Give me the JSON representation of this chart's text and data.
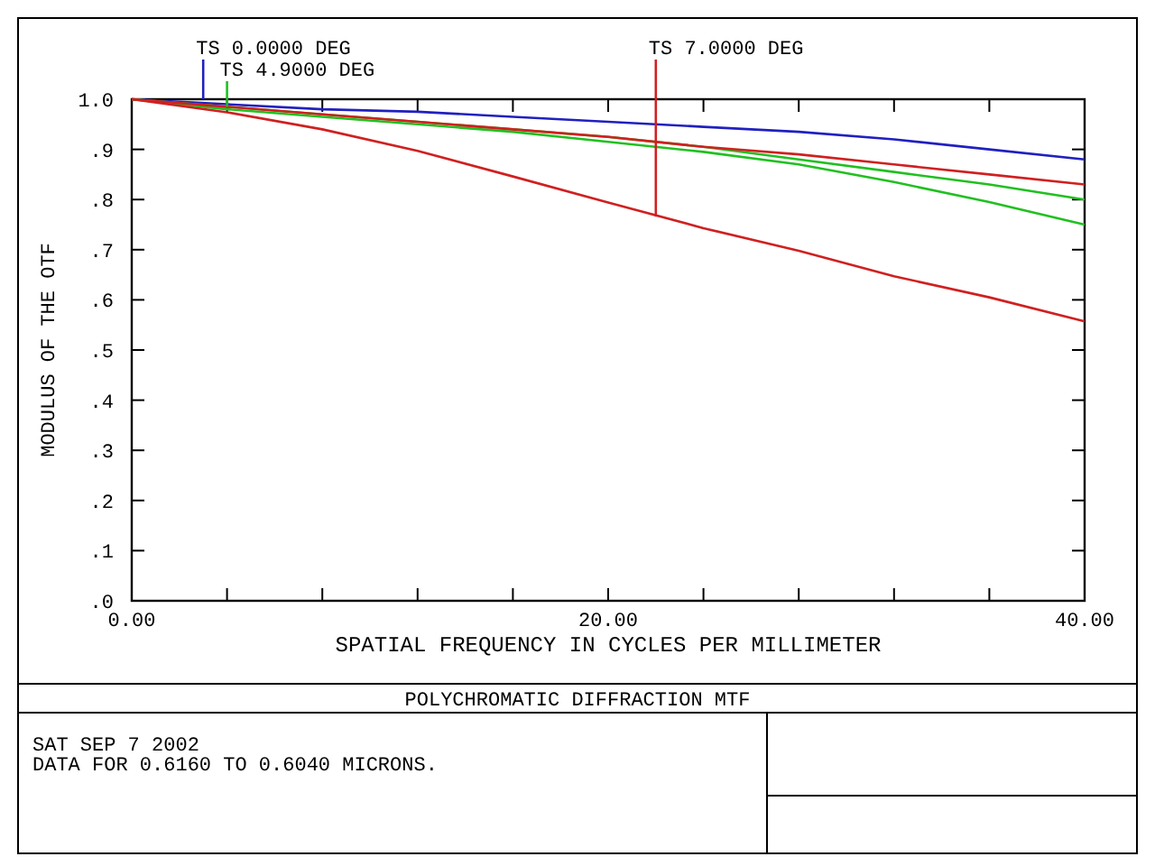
{
  "chart_data": {
    "type": "line",
    "title": "POLYCHROMATIC DIFFRACTION MTF",
    "xlabel": "SPATIAL FREQUENCY IN CYCLES PER MILLIMETER",
    "ylabel": "MODULUS OF THE OTF",
    "x": [
      0,
      4,
      8,
      12,
      16,
      20,
      24,
      28,
      32,
      36,
      40
    ],
    "series": [
      {
        "color": "#2020c0",
        "values": [
          1.0,
          0.99,
          0.98,
          0.975,
          0.965,
          0.955,
          0.945,
          0.935,
          0.92,
          0.9,
          0.88
        ]
      },
      {
        "color": "#20c020",
        "values": [
          1.0,
          0.985,
          0.97,
          0.955,
          0.94,
          0.925,
          0.905,
          0.88,
          0.855,
          0.83,
          0.8
        ]
      },
      {
        "color": "#20c020",
        "values": [
          1.0,
          0.98,
          0.965,
          0.95,
          0.935,
          0.915,
          0.895,
          0.87,
          0.835,
          0.795,
          0.75
        ]
      },
      {
        "color": "#d02020",
        "values": [
          1.0,
          0.985,
          0.97,
          0.955,
          0.94,
          0.925,
          0.905,
          0.89,
          0.87,
          0.85,
          0.83
        ]
      },
      {
        "color": "#d02020",
        "values": [
          1.0,
          0.974,
          0.94,
          0.897,
          0.846,
          0.794,
          0.743,
          0.698,
          0.647,
          0.605,
          0.557
        ]
      }
    ],
    "xlim": [
      0,
      40
    ],
    "ylim": [
      0,
      1
    ],
    "xticks": [
      {
        "value": 0,
        "label": "0.00"
      },
      {
        "value": 4,
        "label": null
      },
      {
        "value": 8,
        "label": null
      },
      {
        "value": 12,
        "label": null
      },
      {
        "value": 16,
        "label": null
      },
      {
        "value": 20,
        "label": "20.00"
      },
      {
        "value": 24,
        "label": null
      },
      {
        "value": 28,
        "label": null
      },
      {
        "value": 32,
        "label": null
      },
      {
        "value": 36,
        "label": null
      },
      {
        "value": 40,
        "label": "40.00"
      }
    ],
    "yticks": [
      {
        "value": 0,
        "label": ".0"
      },
      {
        "value": 0.1,
        "label": ".1"
      },
      {
        "value": 0.2,
        "label": ".2"
      },
      {
        "value": 0.3,
        "label": ".3"
      },
      {
        "value": 0.4,
        "label": ".4"
      },
      {
        "value": 0.5,
        "label": ".5"
      },
      {
        "value": 0.6,
        "label": ".6"
      },
      {
        "value": 0.7,
        "label": ".7"
      },
      {
        "value": 0.8,
        "label": ".8"
      },
      {
        "value": 0.9,
        "label": ".9"
      },
      {
        "value": 1,
        "label": "1.0"
      }
    ],
    "marker": "none",
    "line_style": "solid",
    "annotations": [
      {
        "text": "TS 0.0000 DEG",
        "x": 3,
        "y": 1.0
      },
      {
        "text": "TS 4.9000 DEG",
        "x": 4,
        "y": 0.985
      },
      {
        "text": "TS 7.0000 DEG",
        "x": 22,
        "y": 0.766
      },
      "SAT SEP 7 2002",
      "DATA FOR 0.6160 TO 0.6040 MICRONS."
    ]
  }
}
